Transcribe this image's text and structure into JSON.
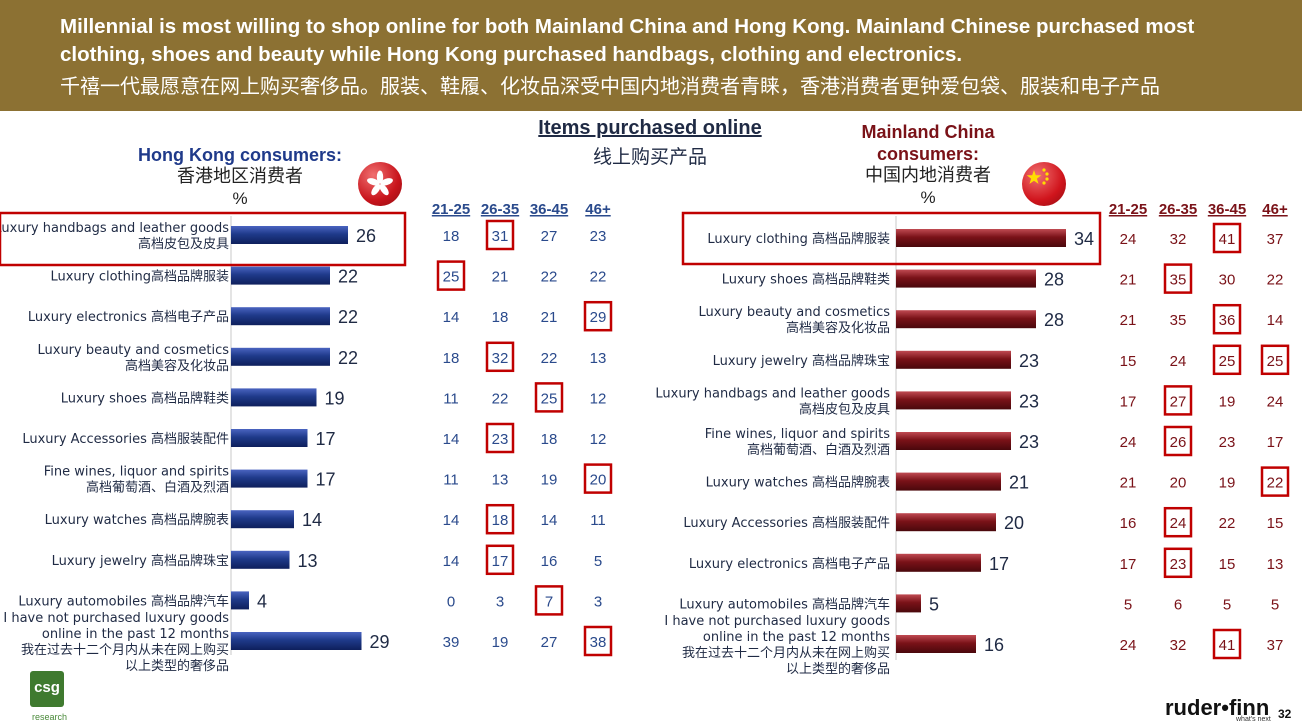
{
  "banner": {
    "line1": "Millennial is most willing to shop online for both Mainland China and Hong Kong. Mainland Chinese purchased most",
    "line2": "clothing, shoes and beauty while Hong Kong purchased handbags, clothing and electronics.",
    "line3": "千禧一代最愿意在网上购买奢侈品。服装、鞋履、化妆品深受中国内地消费者青睐，香港消费者更钟爱包袋、服装和电子产品"
  },
  "center_title": {
    "en": "Items purchased online",
    "zh": "线上购买产品"
  },
  "hk": {
    "title_en": "Hong Kong consumers:",
    "title_zh": "香港地区消费者",
    "pct": "%"
  },
  "cn": {
    "title_en1": "Mainland China",
    "title_en2": "consumers:",
    "title_zh": "中国内地消费者",
    "pct": "%"
  },
  "colors": {
    "banner": "#8c7133",
    "hk_bar": "#1f3a8a",
    "cn_bar": "#7a1218",
    "highlight": "#c00000"
  },
  "chart_data": [
    {
      "type": "bar",
      "orientation": "horizontal",
      "title": "Hong Kong consumers: 香港地区消费者",
      "unit": "%",
      "categories": [
        [
          "Luxury handbags and leather goods",
          "高档皮包及皮具"
        ],
        [
          "Luxury clothing高档品牌服装"
        ],
        [
          "Luxury electronics 高档电子产品"
        ],
        [
          "Luxury beauty and  cosmetics",
          "高档美容及化妆品"
        ],
        [
          "Luxury shoes 高档品牌鞋类"
        ],
        [
          "Luxury Accessories 高档服装配件"
        ],
        [
          "Fine wines, liquor and spirits",
          "高档葡萄酒、白酒及烈酒"
        ],
        [
          "Luxury watches 高档品牌腕表"
        ],
        [
          "Luxury jewelry 高档品牌珠宝"
        ],
        [
          "Luxury automobiles 高档品牌汽车"
        ],
        [
          "I have not purchased luxury goods",
          "online in the past 12 months",
          "我在过去十二个月内从未在网上购买",
          "以上类型的奢侈品"
        ]
      ],
      "values": [
        26,
        22,
        22,
        22,
        19,
        17,
        17,
        14,
        13,
        4,
        29
      ],
      "highlight_rows": [
        0
      ],
      "age_groups": [
        "21-25",
        "26-35",
        "36-45",
        "46+"
      ],
      "age_values": [
        [
          18,
          31,
          27,
          23
        ],
        [
          25,
          21,
          22,
          22
        ],
        [
          14,
          18,
          21,
          29
        ],
        [
          18,
          32,
          22,
          13
        ],
        [
          11,
          22,
          25,
          12
        ],
        [
          14,
          23,
          18,
          12
        ],
        [
          11,
          13,
          19,
          20
        ],
        [
          14,
          18,
          14,
          11
        ],
        [
          14,
          17,
          16,
          5
        ],
        [
          0,
          3,
          7,
          3
        ],
        [
          39,
          19,
          27,
          38
        ]
      ],
      "age_highlights": [
        [
          0,
          1
        ],
        [
          1,
          0
        ],
        [
          2,
          3
        ],
        [
          3,
          1
        ],
        [
          4,
          2
        ],
        [
          5,
          1
        ],
        [
          6,
          3
        ],
        [
          7,
          1
        ],
        [
          8,
          1
        ],
        [
          9,
          2
        ],
        [
          10,
          3
        ]
      ]
    },
    {
      "type": "bar",
      "orientation": "horizontal",
      "title": "Mainland China consumers: 中国内地消费者",
      "unit": "%",
      "categories": [
        [
          "Luxury clothing 高档品牌服装"
        ],
        [
          "Luxury shoes 高档品牌鞋类"
        ],
        [
          "Luxury beauty and  cosmetics",
          "高档美容及化妆品"
        ],
        [
          "Luxury jewelry 高档品牌珠宝"
        ],
        [
          "Luxury handbags and leather goods",
          "高档皮包及皮具"
        ],
        [
          "Fine wines, liquor and spirits",
          "高档葡萄酒、白酒及烈酒"
        ],
        [
          "Luxury watches 高档品牌腕表"
        ],
        [
          "Luxury Accessories 高档服装配件"
        ],
        [
          "Luxury electronics 高档电子产品"
        ],
        [
          "Luxury automobiles 高档品牌汽车"
        ],
        [
          "I have not purchased luxury goods",
          "online in the past 12 months",
          "我在过去十二个月内从未在网上购买",
          "以上类型的奢侈品"
        ]
      ],
      "values": [
        34,
        28,
        28,
        23,
        23,
        23,
        21,
        20,
        17,
        5,
        16
      ],
      "highlight_rows": [
        0
      ],
      "age_groups": [
        "21-25",
        "26-35",
        "36-45",
        "46+"
      ],
      "age_values": [
        [
          24,
          32,
          41,
          37
        ],
        [
          21,
          35,
          30,
          22
        ],
        [
          21,
          35,
          36,
          14
        ],
        [
          15,
          24,
          25,
          25
        ],
        [
          17,
          27,
          19,
          24
        ],
        [
          24,
          26,
          23,
          17
        ],
        [
          21,
          20,
          19,
          22
        ],
        [
          16,
          24,
          22,
          15
        ],
        [
          17,
          23,
          15,
          13
        ],
        [
          5,
          6,
          5,
          5
        ],
        [
          24,
          32,
          41,
          37
        ]
      ],
      "age_highlights": [
        [
          0,
          2
        ],
        [
          1,
          1
        ],
        [
          2,
          2
        ],
        [
          3,
          2
        ],
        [
          3,
          3
        ],
        [
          4,
          1
        ],
        [
          5,
          1
        ],
        [
          6,
          3
        ],
        [
          7,
          1
        ],
        [
          8,
          1
        ],
        [
          10,
          2
        ]
      ]
    }
  ],
  "footer": {
    "logo_left": "csg",
    "logo_left_sub": "research",
    "logo_right": "ruder•finn",
    "logo_right_sub": "what's next",
    "page": "32"
  }
}
